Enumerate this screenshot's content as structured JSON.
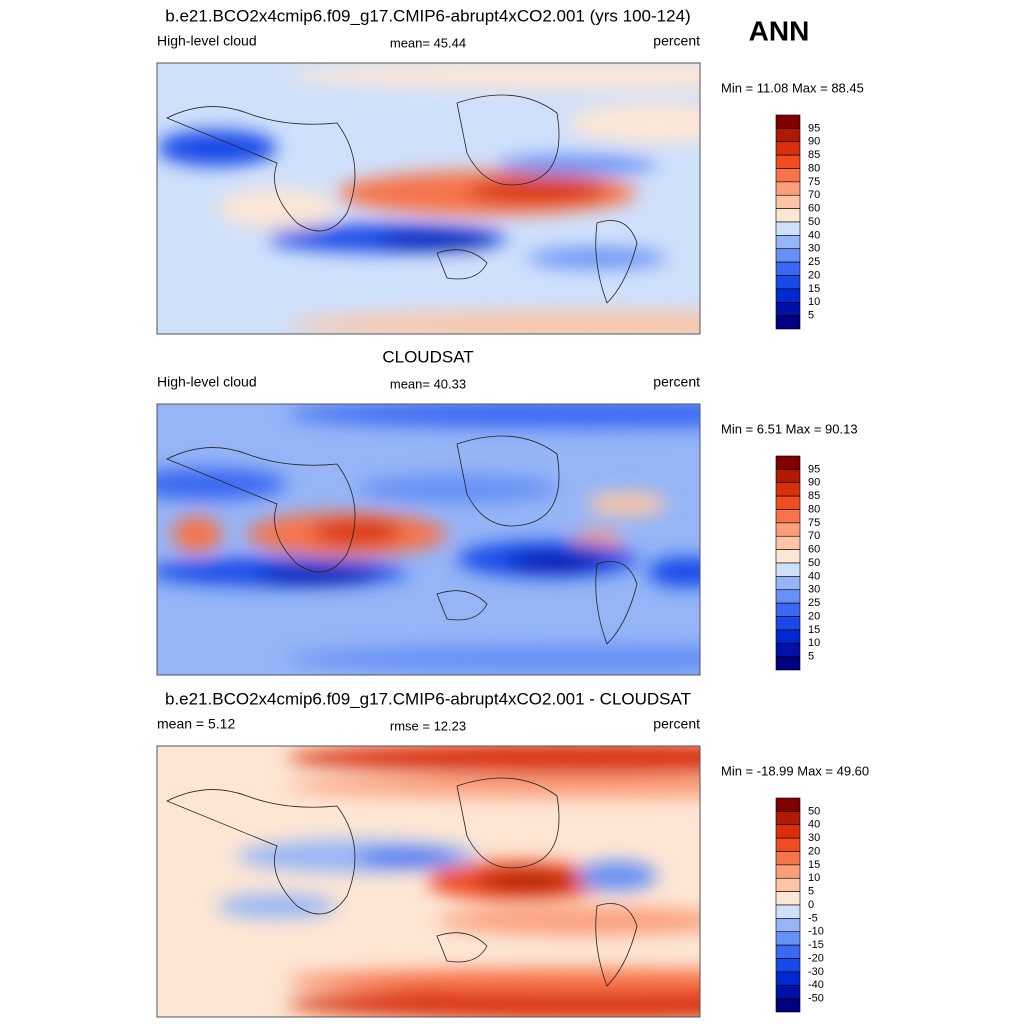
{
  "season": "ANN",
  "panels": [
    {
      "title": "b.e21.BCO2x4cmip6.f09_g17.CMIP6-abrupt4xCO2.001 (yrs 100-124)",
      "left": "High-level cloud",
      "center": "mean=  45.44",
      "right": "percent",
      "minmax": "Min =  11.08 Max =  88.45",
      "colorbar": {
        "labels": [
          95,
          90,
          85,
          80,
          75,
          70,
          60,
          50,
          40,
          30,
          25,
          20,
          15,
          10,
          5
        ],
        "colors": [
          "#800000",
          "#b01a04",
          "#d8300c",
          "#ef4c22",
          "#f77349",
          "#fb9f7b",
          "#fcc6a6",
          "#fde6d4",
          "#cfe0fb",
          "#95b5f7",
          "#6690f5",
          "#3a68f2",
          "#1848e8",
          "#0028d0",
          "#0010a8",
          "#000080"
        ]
      }
    },
    {
      "title": "CLOUDSAT",
      "left": "High-level cloud",
      "center": "mean=  40.33",
      "right": "percent",
      "minmax": "Min =   6.51 Max =  90.13",
      "colorbar": {
        "labels": [
          95,
          90,
          85,
          80,
          75,
          70,
          60,
          50,
          40,
          30,
          25,
          20,
          15,
          10,
          5
        ],
        "colors": [
          "#800000",
          "#b01a04",
          "#d8300c",
          "#ef4c22",
          "#f77349",
          "#fb9f7b",
          "#fcc6a6",
          "#fde6d4",
          "#cfe0fb",
          "#95b5f7",
          "#6690f5",
          "#3a68f2",
          "#1848e8",
          "#0028d0",
          "#0010a8",
          "#000080"
        ]
      }
    },
    {
      "title": "b.e21.BCO2x4cmip6.f09_g17.CMIP6-abrupt4xCO2.001 - CLOUDSAT",
      "left": "mean =   5.12",
      "center": "rmse =  12.23",
      "right": "percent",
      "minmax": "Min = -18.99 Max =  49.60",
      "colorbar": {
        "labels": [
          50,
          40,
          30,
          20,
          15,
          10,
          5,
          0,
          -5,
          -10,
          -15,
          -20,
          -30,
          -40,
          -50
        ],
        "colors": [
          "#800000",
          "#b01a04",
          "#d8300c",
          "#ef4c22",
          "#f77349",
          "#fb9f7b",
          "#fcc6a6",
          "#fde6d4",
          "#cfe0fb",
          "#95b5f7",
          "#6690f5",
          "#3a68f2",
          "#1848e8",
          "#0028d0",
          "#0010a8",
          "#000080"
        ]
      }
    }
  ]
}
